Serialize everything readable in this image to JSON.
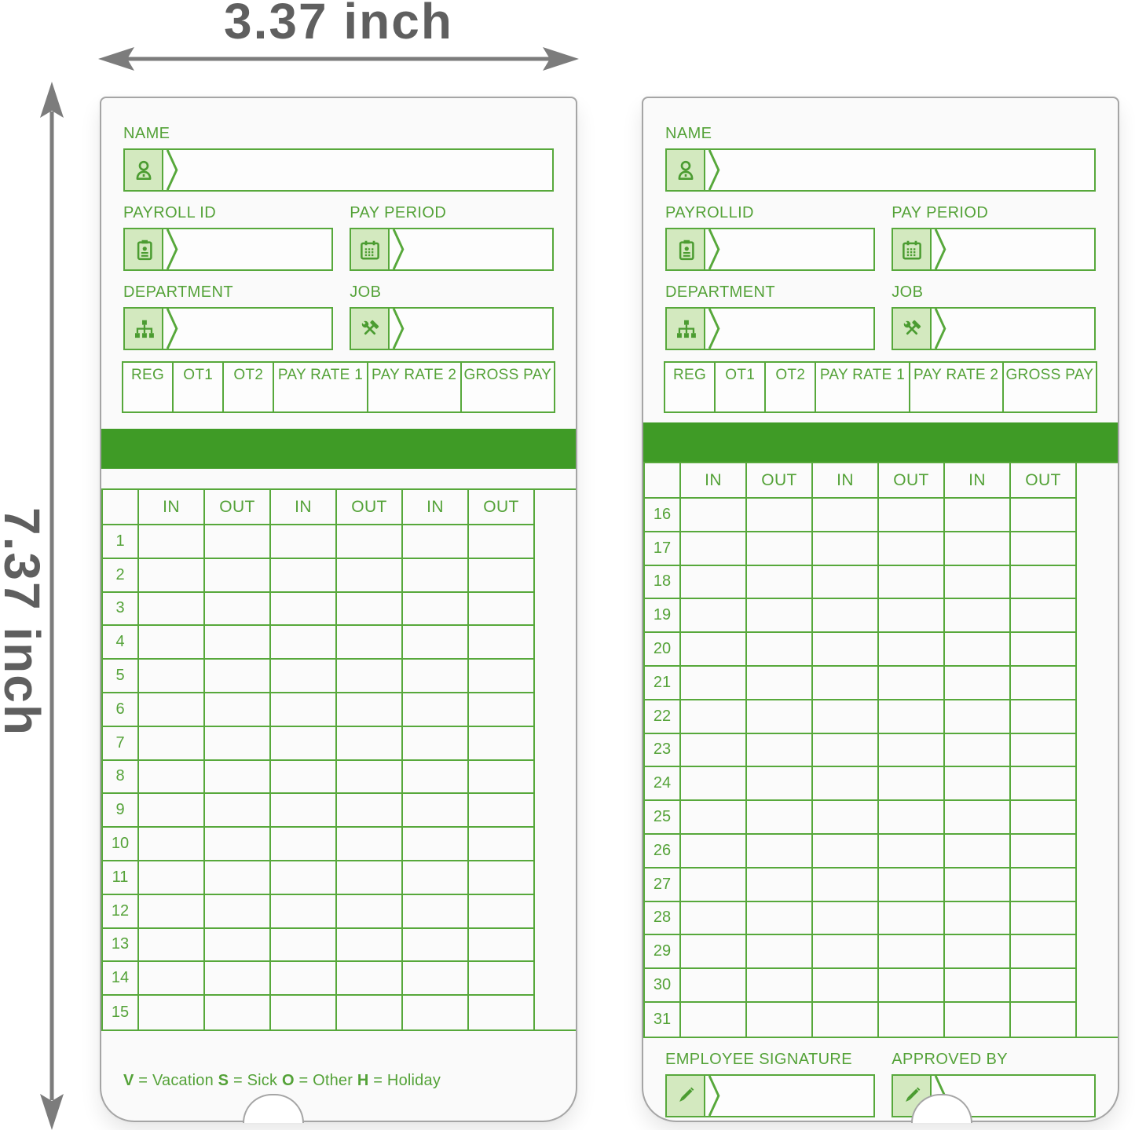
{
  "dimension_labels": {
    "width": "3.37 inch",
    "height": "7.37 inch"
  },
  "colors": {
    "green_border": "#57a83b",
    "green_bar": "#3f9b26",
    "green_light_fill": "#d3e9bf",
    "green_text": "#54a238",
    "card_border": "#a5a5a5",
    "dimension_text": "#5f5f5f",
    "arrow": "#7c7c7c"
  },
  "cards": {
    "front": {
      "name_label": "NAME",
      "payroll_label": "PAYROLL ID",
      "pay_period_label": "PAY PERIOD",
      "department_label": "DEPARTMENT",
      "job_label": "JOB",
      "pay_headers": [
        "REG",
        "OT1",
        "OT2",
        "PAY RATE 1",
        "PAY RATE 2",
        "GROSS PAY"
      ],
      "punch_headers": [
        "IN",
        "OUT",
        "IN",
        "OUT",
        "IN",
        "OUT"
      ],
      "days": [
        "1",
        "2",
        "3",
        "4",
        "5",
        "6",
        "7",
        "8",
        "9",
        "10",
        "11",
        "12",
        "13",
        "14",
        "15"
      ],
      "legend": [
        {
          "key": "V",
          "value": "Vacation"
        },
        {
          "key": "S",
          "value": "Sick"
        },
        {
          "key": "O",
          "value": "Other"
        },
        {
          "key": "H",
          "value": "Holiday"
        }
      ]
    },
    "back": {
      "name_label": "NAME",
      "payroll_label": "PAYROLLID",
      "pay_period_label": "PAY PERIOD",
      "department_label": "DEPARTMENT",
      "job_label": "JOB",
      "pay_headers": [
        "REG",
        "OT1",
        "OT2",
        "PAY RATE 1",
        "PAY RATE 2",
        "GROSS PAY"
      ],
      "punch_headers": [
        "IN",
        "OUT",
        "IN",
        "OUT",
        "IN",
        "OUT"
      ],
      "days": [
        "16",
        "17",
        "18",
        "19",
        "20",
        "21",
        "22",
        "23",
        "24",
        "25",
        "26",
        "27",
        "28",
        "29",
        "30",
        "31"
      ],
      "signature_label": "EMPLOYEE SIGNATURE",
      "approved_label": "APPROVED BY"
    }
  }
}
